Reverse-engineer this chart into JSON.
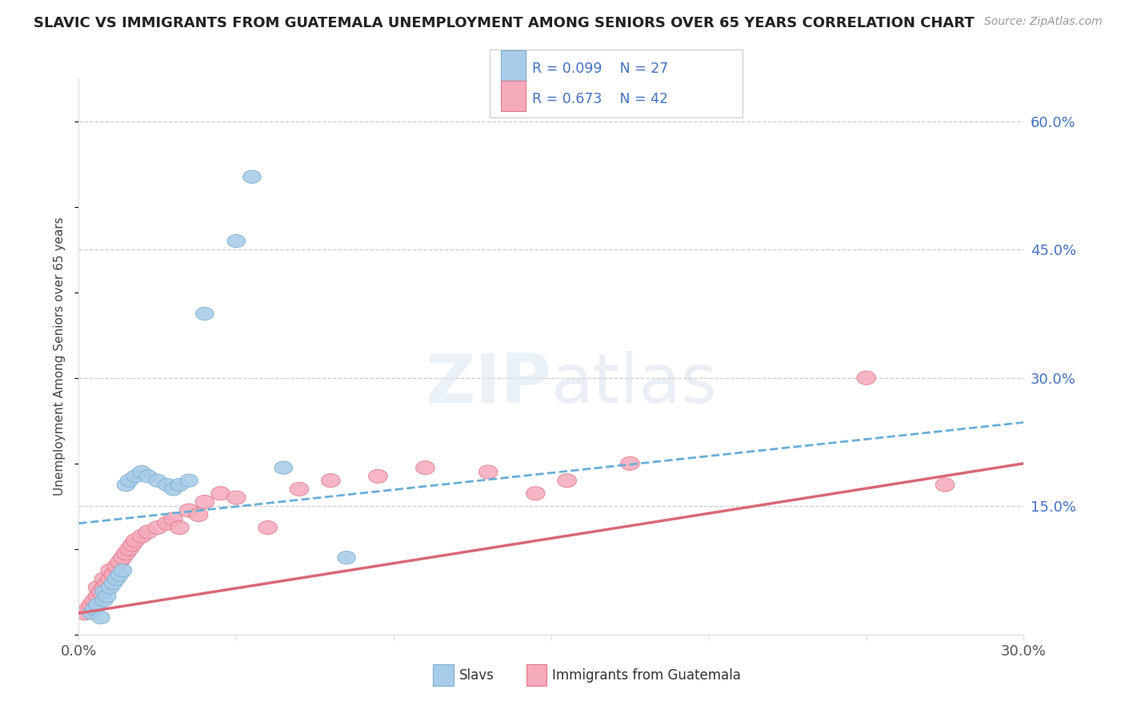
{
  "title": "SLAVIC VS IMMIGRANTS FROM GUATEMALA UNEMPLOYMENT AMONG SENIORS OVER 65 YEARS CORRELATION CHART",
  "source": "Source: ZipAtlas.com",
  "ylabel": "Unemployment Among Seniors over 65 years",
  "x_min": 0.0,
  "x_max": 0.3,
  "y_min": 0.0,
  "y_max": 0.65,
  "y_ticks": [
    0.15,
    0.3,
    0.45,
    0.6
  ],
  "y_tick_labels": [
    "15.0%",
    "30.0%",
    "45.0%",
    "60.0%"
  ],
  "x_ticks": [
    0.0,
    0.05,
    0.1,
    0.15,
    0.2,
    0.25,
    0.3
  ],
  "slavs_color": "#A8CCE8",
  "slavs_edge_color": "#7AAED0",
  "guatemala_color": "#F5AABB",
  "guatemala_edge_color": "#E07888",
  "slavs_line_color": "#6AAED6",
  "guatemala_line_color": "#D86878",
  "slavs_R": 0.099,
  "slavs_N": 27,
  "guatemala_R": 0.673,
  "guatemala_N": 42,
  "slavs_x": [
    0.004,
    0.005,
    0.006,
    0.007,
    0.008,
    0.008,
    0.009,
    0.01,
    0.011,
    0.012,
    0.013,
    0.014,
    0.015,
    0.016,
    0.018,
    0.02,
    0.022,
    0.025,
    0.028,
    0.03,
    0.032,
    0.035,
    0.04,
    0.05,
    0.055,
    0.065,
    0.085
  ],
  "slavs_y": [
    0.025,
    0.03,
    0.035,
    0.02,
    0.04,
    0.05,
    0.045,
    0.055,
    0.06,
    0.065,
    0.07,
    0.075,
    0.175,
    0.18,
    0.185,
    0.19,
    0.185,
    0.18,
    0.175,
    0.17,
    0.175,
    0.18,
    0.375,
    0.46,
    0.535,
    0.195,
    0.09
  ],
  "guatemala_x": [
    0.002,
    0.003,
    0.004,
    0.005,
    0.006,
    0.006,
    0.007,
    0.008,
    0.008,
    0.009,
    0.01,
    0.01,
    0.011,
    0.012,
    0.013,
    0.014,
    0.015,
    0.016,
    0.017,
    0.018,
    0.02,
    0.022,
    0.025,
    0.028,
    0.03,
    0.032,
    0.035,
    0.038,
    0.04,
    0.045,
    0.05,
    0.06,
    0.07,
    0.08,
    0.095,
    0.11,
    0.13,
    0.145,
    0.155,
    0.175,
    0.25,
    0.275
  ],
  "guatemala_y": [
    0.025,
    0.03,
    0.035,
    0.04,
    0.045,
    0.055,
    0.05,
    0.055,
    0.065,
    0.06,
    0.065,
    0.075,
    0.07,
    0.08,
    0.085,
    0.09,
    0.095,
    0.1,
    0.105,
    0.11,
    0.115,
    0.12,
    0.125,
    0.13,
    0.135,
    0.125,
    0.145,
    0.14,
    0.155,
    0.165,
    0.16,
    0.125,
    0.17,
    0.18,
    0.185,
    0.195,
    0.19,
    0.165,
    0.18,
    0.2,
    0.3,
    0.175
  ],
  "slavs_trend_y0": 0.13,
  "slavs_trend_y1": 0.248,
  "guat_trend_y0": 0.025,
  "guat_trend_y1": 0.2
}
